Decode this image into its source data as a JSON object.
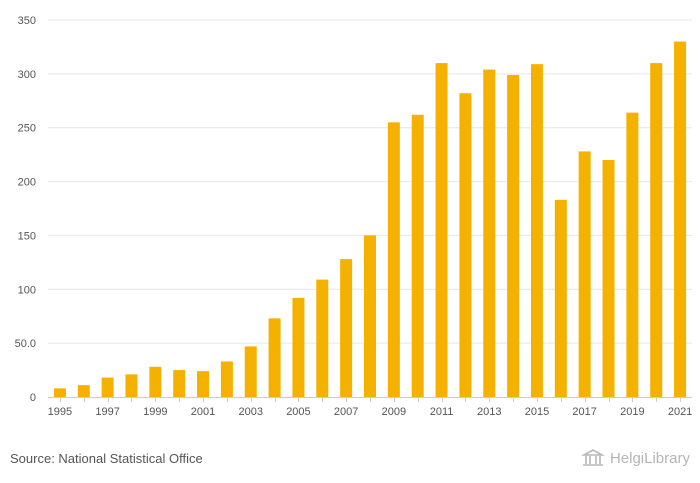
{
  "chart_data": {
    "type": "bar",
    "title": "",
    "xlabel": "",
    "ylabel": "",
    "categories": [
      "1995",
      "1996",
      "1997",
      "1998",
      "1999",
      "2000",
      "2001",
      "2002",
      "2003",
      "2004",
      "2005",
      "2006",
      "2007",
      "2008",
      "2009",
      "2010",
      "2011",
      "2012",
      "2013",
      "2014",
      "2015",
      "2016",
      "2017",
      "2018",
      "2019",
      "2020",
      "2021"
    ],
    "x_tick_labels": [
      "1995",
      "1997",
      "1999",
      "2001",
      "2003",
      "2005",
      "2007",
      "2009",
      "2011",
      "2013",
      "2015",
      "2017",
      "2019",
      "2021"
    ],
    "values": [
      8,
      11,
      18,
      21,
      28,
      25,
      24,
      33,
      47,
      73,
      92,
      109,
      128,
      150,
      255,
      262,
      310,
      282,
      304,
      299,
      309,
      183,
      228,
      220,
      264,
      310,
      330
    ],
    "y_ticks": [
      0,
      50,
      100,
      150,
      200,
      250,
      300,
      350
    ],
    "y_tick_labels": [
      "0",
      "50.0",
      "100",
      "150",
      "200",
      "250",
      "300",
      "350"
    ],
    "ylim": [
      0,
      350
    ],
    "grid": true,
    "bar_color": "#f5b100",
    "grid_color": "#e6e6e6"
  },
  "footer": {
    "source": "Source: National Statistical Office",
    "brand": "HelgiLibrary"
  }
}
